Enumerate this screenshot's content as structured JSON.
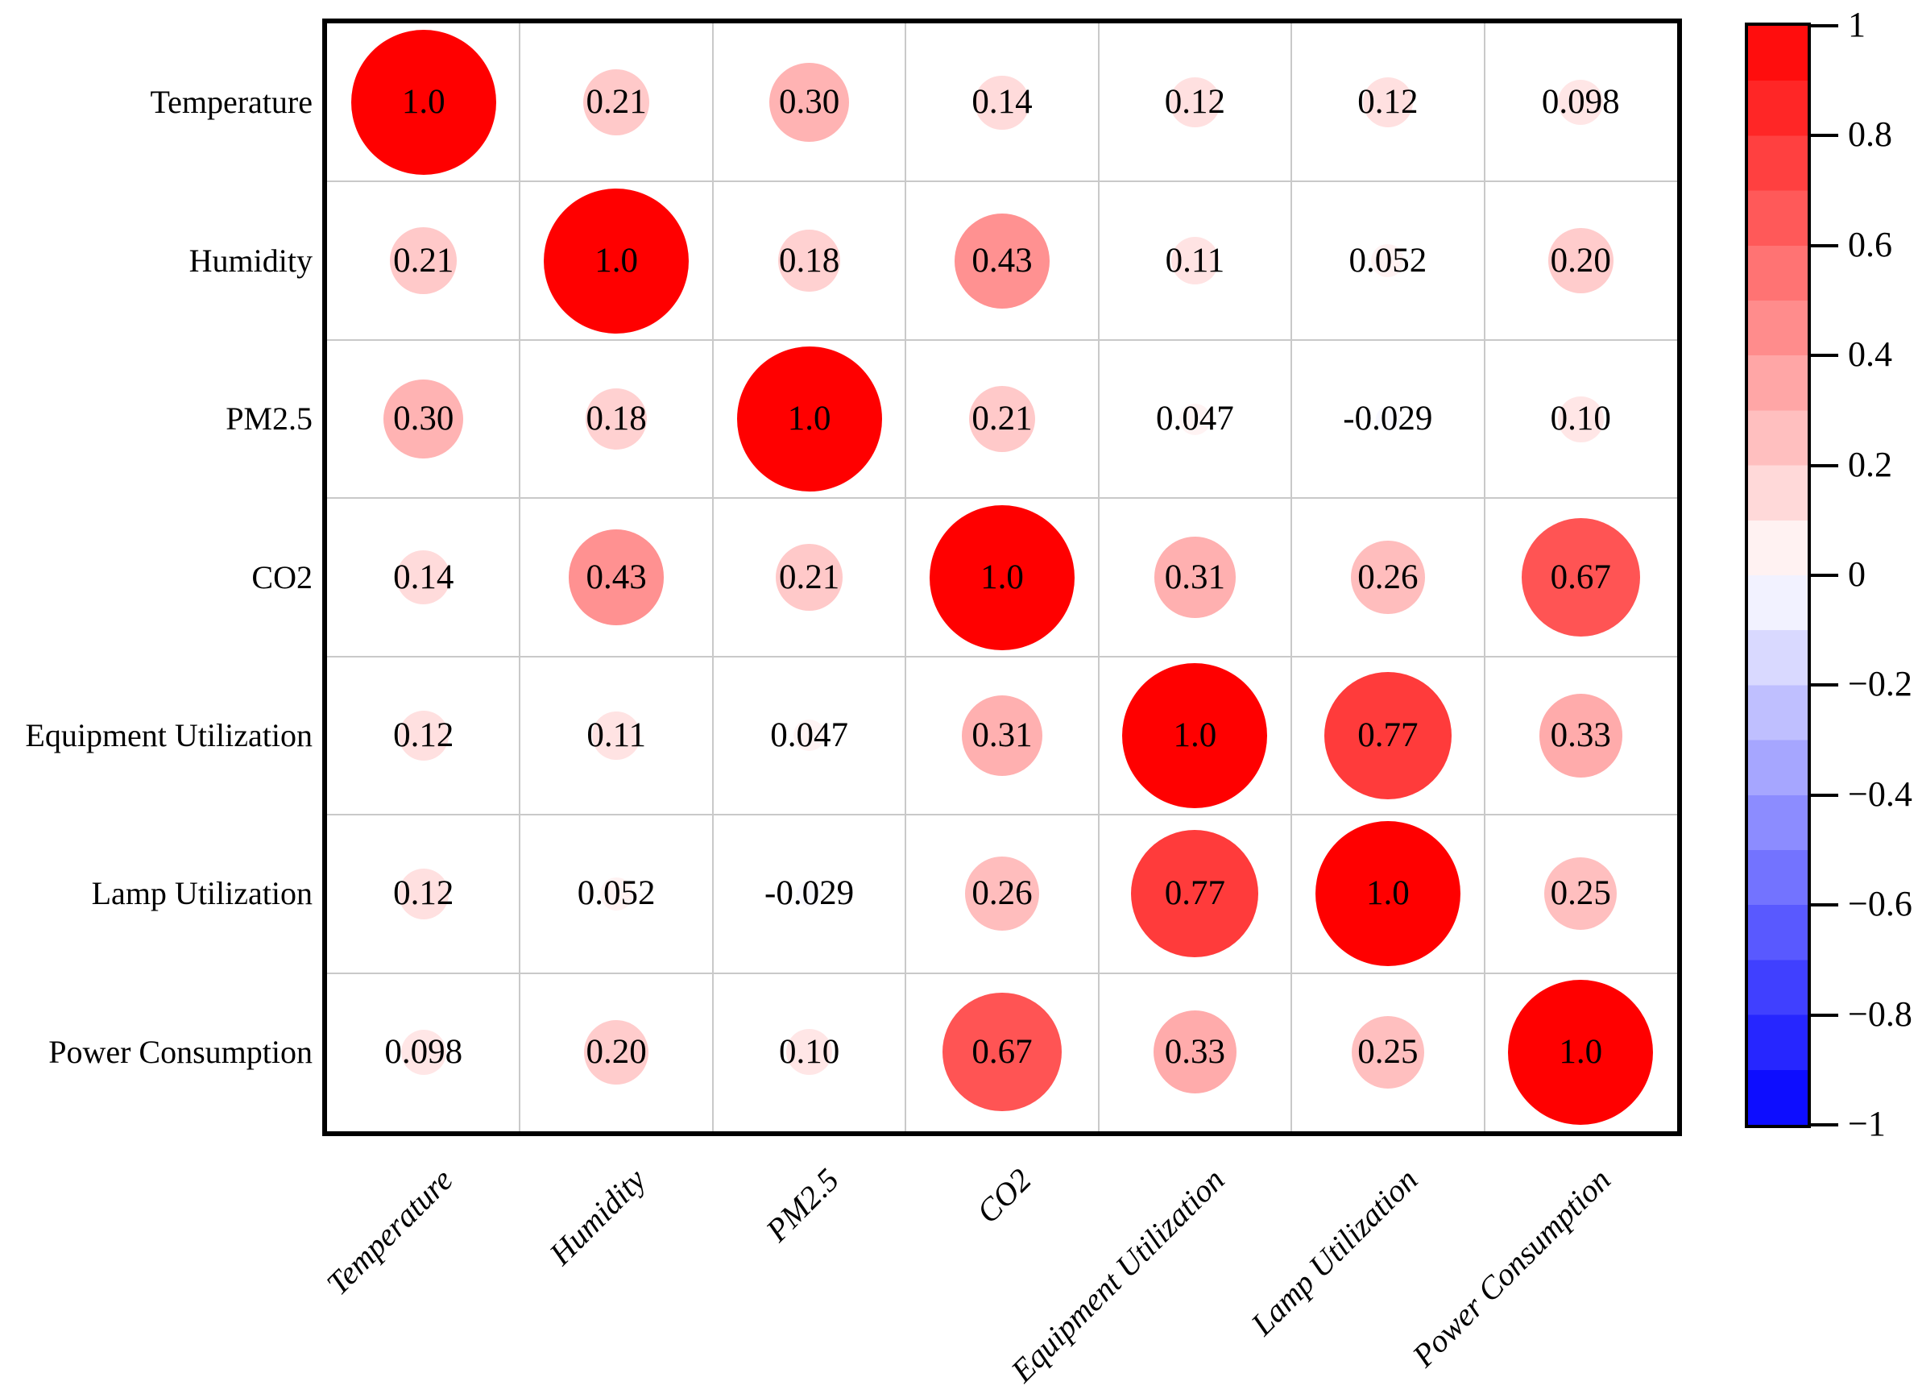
{
  "chart_data": {
    "type": "heatmap",
    "subtype": "correlation-bubble-matrix",
    "title": "",
    "variables": [
      "Temperature",
      "Humidity",
      "PM2.5",
      "CO2",
      "Equipment Utilization",
      "Lamp Utilization",
      "Power Consumption"
    ],
    "matrix": [
      [
        "1.0",
        "0.21",
        "0.30",
        "0.14",
        "0.12",
        "0.12",
        "0.098"
      ],
      [
        "0.21",
        "1.0",
        "0.18",
        "0.43",
        "0.11",
        "0.052",
        "0.20"
      ],
      [
        "0.30",
        "0.18",
        "1.0",
        "0.21",
        "0.047",
        "-0.029",
        "0.10"
      ],
      [
        "0.14",
        "0.43",
        "0.21",
        "1.0",
        "0.31",
        "0.26",
        "0.67"
      ],
      [
        "0.12",
        "0.11",
        "0.047",
        "0.31",
        "1.0",
        "0.77",
        "0.33"
      ],
      [
        "0.12",
        "0.052",
        "-0.029",
        "0.26",
        "0.77",
        "1.0",
        "0.25"
      ],
      [
        "0.098",
        "0.20",
        "0.10",
        "0.67",
        "0.33",
        "0.25",
        "1.0"
      ]
    ],
    "bubble_rule": "circle area proportional to |r|, max radius 90px at r=1",
    "colormap": "blue-white-red",
    "value_range": [
      -1,
      1
    ],
    "colorbar_tick_labels": [
      "1",
      "0.8",
      "0.6",
      "0.4",
      "0.2",
      "0",
      "−0.2",
      "−0.4",
      "−0.6",
      "−0.8",
      "−1"
    ],
    "legend_position": "right-colorbar",
    "grid": true,
    "colors": {
      "max_positive": "#ff0000",
      "zero": "#ffffff",
      "max_negative": "#0000ff",
      "grid_line": "#c9c9c9",
      "axis_border": "#000000",
      "text": "#000000",
      "background": "#ffffff"
    }
  }
}
